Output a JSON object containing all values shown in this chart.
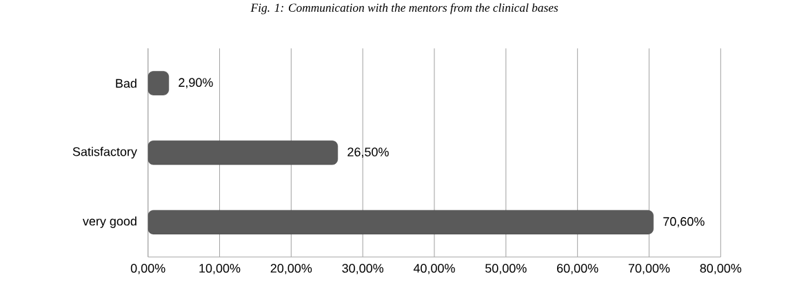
{
  "chart_data": {
    "type": "bar",
    "orientation": "horizontal",
    "title": "Fig. 1: Communication with the mentors from the clinical bases",
    "categories": [
      "Bad",
      "Satisfactory",
      "very good"
    ],
    "values": [
      2.9,
      26.5,
      70.6
    ],
    "value_labels": [
      "2,90%",
      "26,50%",
      "70,60%"
    ],
    "color": "#5a5a5a",
    "xlim": [
      0,
      80
    ],
    "xticks": [
      {
        "value": 0,
        "label": "0,00%"
      },
      {
        "value": 10,
        "label": "10,00%"
      },
      {
        "value": 20,
        "label": "20,00%"
      },
      {
        "value": 30,
        "label": "30,00%"
      },
      {
        "value": 40,
        "label": "40,00%"
      },
      {
        "value": 50,
        "label": "50,00%"
      },
      {
        "value": 60,
        "label": "60,00%"
      },
      {
        "value": 70,
        "label": "70,00%"
      },
      {
        "value": 80,
        "label": "80,00%"
      }
    ],
    "grid": "x"
  }
}
